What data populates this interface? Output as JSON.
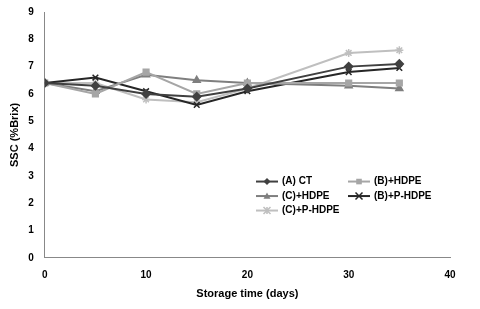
{
  "chart_data": {
    "type": "line",
    "x_label": "Storage time (days)",
    "y_label": "SSC (%Brix)",
    "x": [
      0,
      5,
      10,
      15,
      20,
      30,
      35
    ],
    "series": [
      {
        "name": "(A) CT",
        "color": "#404040",
        "marker": "diamond",
        "line_style": "solid",
        "values": [
          6.4,
          6.3,
          6.0,
          5.9,
          6.2,
          7.0,
          7.1
        ]
      },
      {
        "name": "(B)+HDPE",
        "color": "#a6a6a6",
        "marker": "square",
        "line_style": "solid",
        "values": [
          6.4,
          6.0,
          6.8,
          6.0,
          6.4,
          6.4,
          6.4
        ]
      },
      {
        "name": "(C)+HDPE",
        "color": "#7f7f7f",
        "marker": "triangle",
        "line_style": "solid",
        "values": [
          6.4,
          6.1,
          6.7,
          6.5,
          6.4,
          6.3,
          6.2
        ]
      },
      {
        "name": "(B)+P-HDPE",
        "color": "#262626",
        "marker": "x",
        "line_style": "solid",
        "values": [
          6.4,
          6.6,
          6.1,
          5.6,
          6.1,
          6.8,
          6.95
        ]
      },
      {
        "name": "(C)+P-HDPE",
        "color": "#bfbfbf",
        "marker": "star",
        "line_style": "solid",
        "values": [
          6.4,
          6.4,
          5.8,
          5.7,
          6.2,
          7.5,
          7.6
        ]
      }
    ],
    "xlim": [
      0,
      40
    ],
    "xticks": [
      0,
      10,
      20,
      30,
      40
    ],
    "ylim": [
      0,
      9
    ],
    "yticks": [
      0,
      1,
      2,
      3,
      4,
      5,
      6,
      7,
      8,
      9
    ],
    "grid": false,
    "legend": "lower right"
  }
}
